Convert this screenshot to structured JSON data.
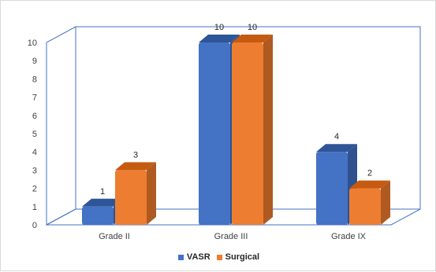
{
  "chart_data": {
    "type": "bar",
    "style": "3d-clustered-column",
    "categories": [
      "Grade II",
      "Grade III",
      "Grade  IX"
    ],
    "series": [
      {
        "name": "VASR",
        "values": [
          1,
          10,
          4
        ],
        "color": "#4472C4",
        "top_color": "#2E5597",
        "side_color": "#2F528F"
      },
      {
        "name": "Surgical",
        "values": [
          3,
          10,
          2
        ],
        "color": "#ED7D31",
        "top_color": "#C55A11",
        "side_color": "#AE5A21"
      }
    ],
    "y_ticks": [
      "0",
      "1",
      "2",
      "3",
      "4",
      "5",
      "6",
      "7",
      "8",
      "9",
      "10"
    ],
    "ylim": [
      0,
      10
    ],
    "legend_position": "bottom",
    "grid": false,
    "wall_color": "#4472C4"
  }
}
